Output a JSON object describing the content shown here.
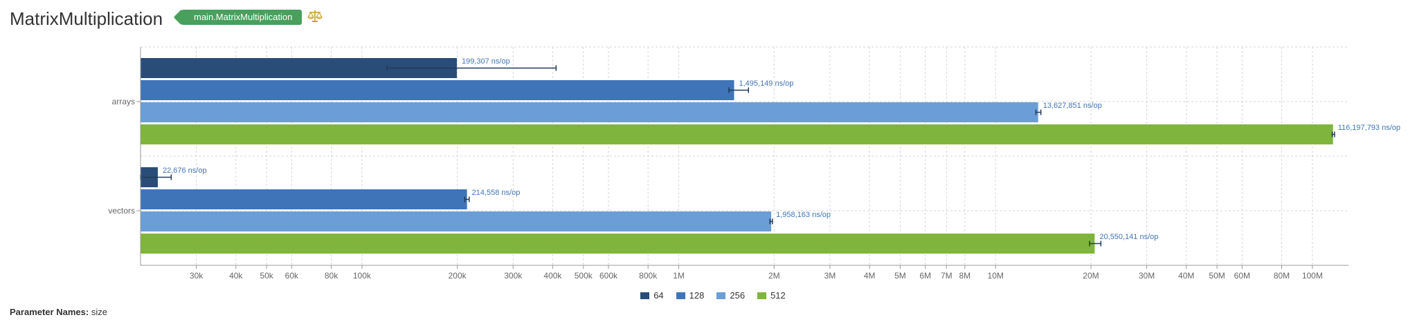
{
  "header": {
    "title": "MatrixMultiplication",
    "tag": "main.MatrixMultiplication",
    "icon": "balance-scale-icon"
  },
  "legend": [
    {
      "label": "64",
      "color": "#2a4d78"
    },
    {
      "label": "128",
      "color": "#3f74b8"
    },
    {
      "label": "256",
      "color": "#6b9ed6"
    },
    {
      "label": "512",
      "color": "#80b53d"
    }
  ],
  "footer": {
    "param_label": "Parameter Names:",
    "param_value": "size"
  },
  "chart_data": {
    "type": "bar",
    "orientation": "horizontal",
    "x_scale": "log",
    "xlim": [
      20000,
      130000000
    ],
    "grid": true,
    "legend_position": "bottom-center",
    "unit": "ns/op",
    "categories": [
      "arrays",
      "vectors"
    ],
    "series": [
      {
        "name": "64",
        "values": [
          199307,
          22676
        ],
        "errors": [
          [
            120000,
            410000
          ],
          [
            20000,
            25000
          ]
        ],
        "labels": [
          "199,307 ns/op",
          "22,676 ns/op"
        ]
      },
      {
        "name": "128",
        "values": [
          1495149,
          214558
        ],
        "errors": [
          [
            1440000,
            1660000
          ],
          [
            211000,
            218000
          ]
        ],
        "labels": [
          "1,495,149 ns/op",
          "214,558 ns/op"
        ]
      },
      {
        "name": "256",
        "values": [
          13627851,
          1958163
        ],
        "errors": [
          [
            13400000,
            13900000
          ],
          [
            1940000,
            1975000
          ]
        ],
        "labels": [
          "13,627,851 ns/op",
          "1,958,163 ns/op"
        ]
      },
      {
        "name": "512",
        "values": [
          116197793,
          20550141
        ],
        "errors": [
          [
            115500000,
            117500000
          ],
          [
            19800000,
            21500000
          ]
        ],
        "labels": [
          "116,197,793 ns/op",
          "20,550,141 ns/op"
        ]
      }
    ],
    "x_ticks": [
      30000,
      40000,
      50000,
      60000,
      80000,
      100000,
      200000,
      300000,
      400000,
      500000,
      600000,
      800000,
      1000000,
      2000000,
      3000000,
      4000000,
      5000000,
      6000000,
      7000000,
      8000000,
      10000000,
      20000000,
      30000000,
      40000000,
      50000000,
      60000000,
      80000000,
      100000000
    ],
    "x_tick_labels": [
      "30k",
      "40k",
      "50k",
      "60k",
      "80k",
      "100k",
      "200k",
      "300k",
      "400k",
      "500k",
      "600k",
      "800k",
      "1M",
      "2M",
      "3M",
      "4M",
      "5M",
      "6M",
      "7M",
      "8M",
      "10M",
      "20M",
      "30M",
      "40M",
      "50M",
      "60M",
      "80M",
      "100M"
    ]
  }
}
